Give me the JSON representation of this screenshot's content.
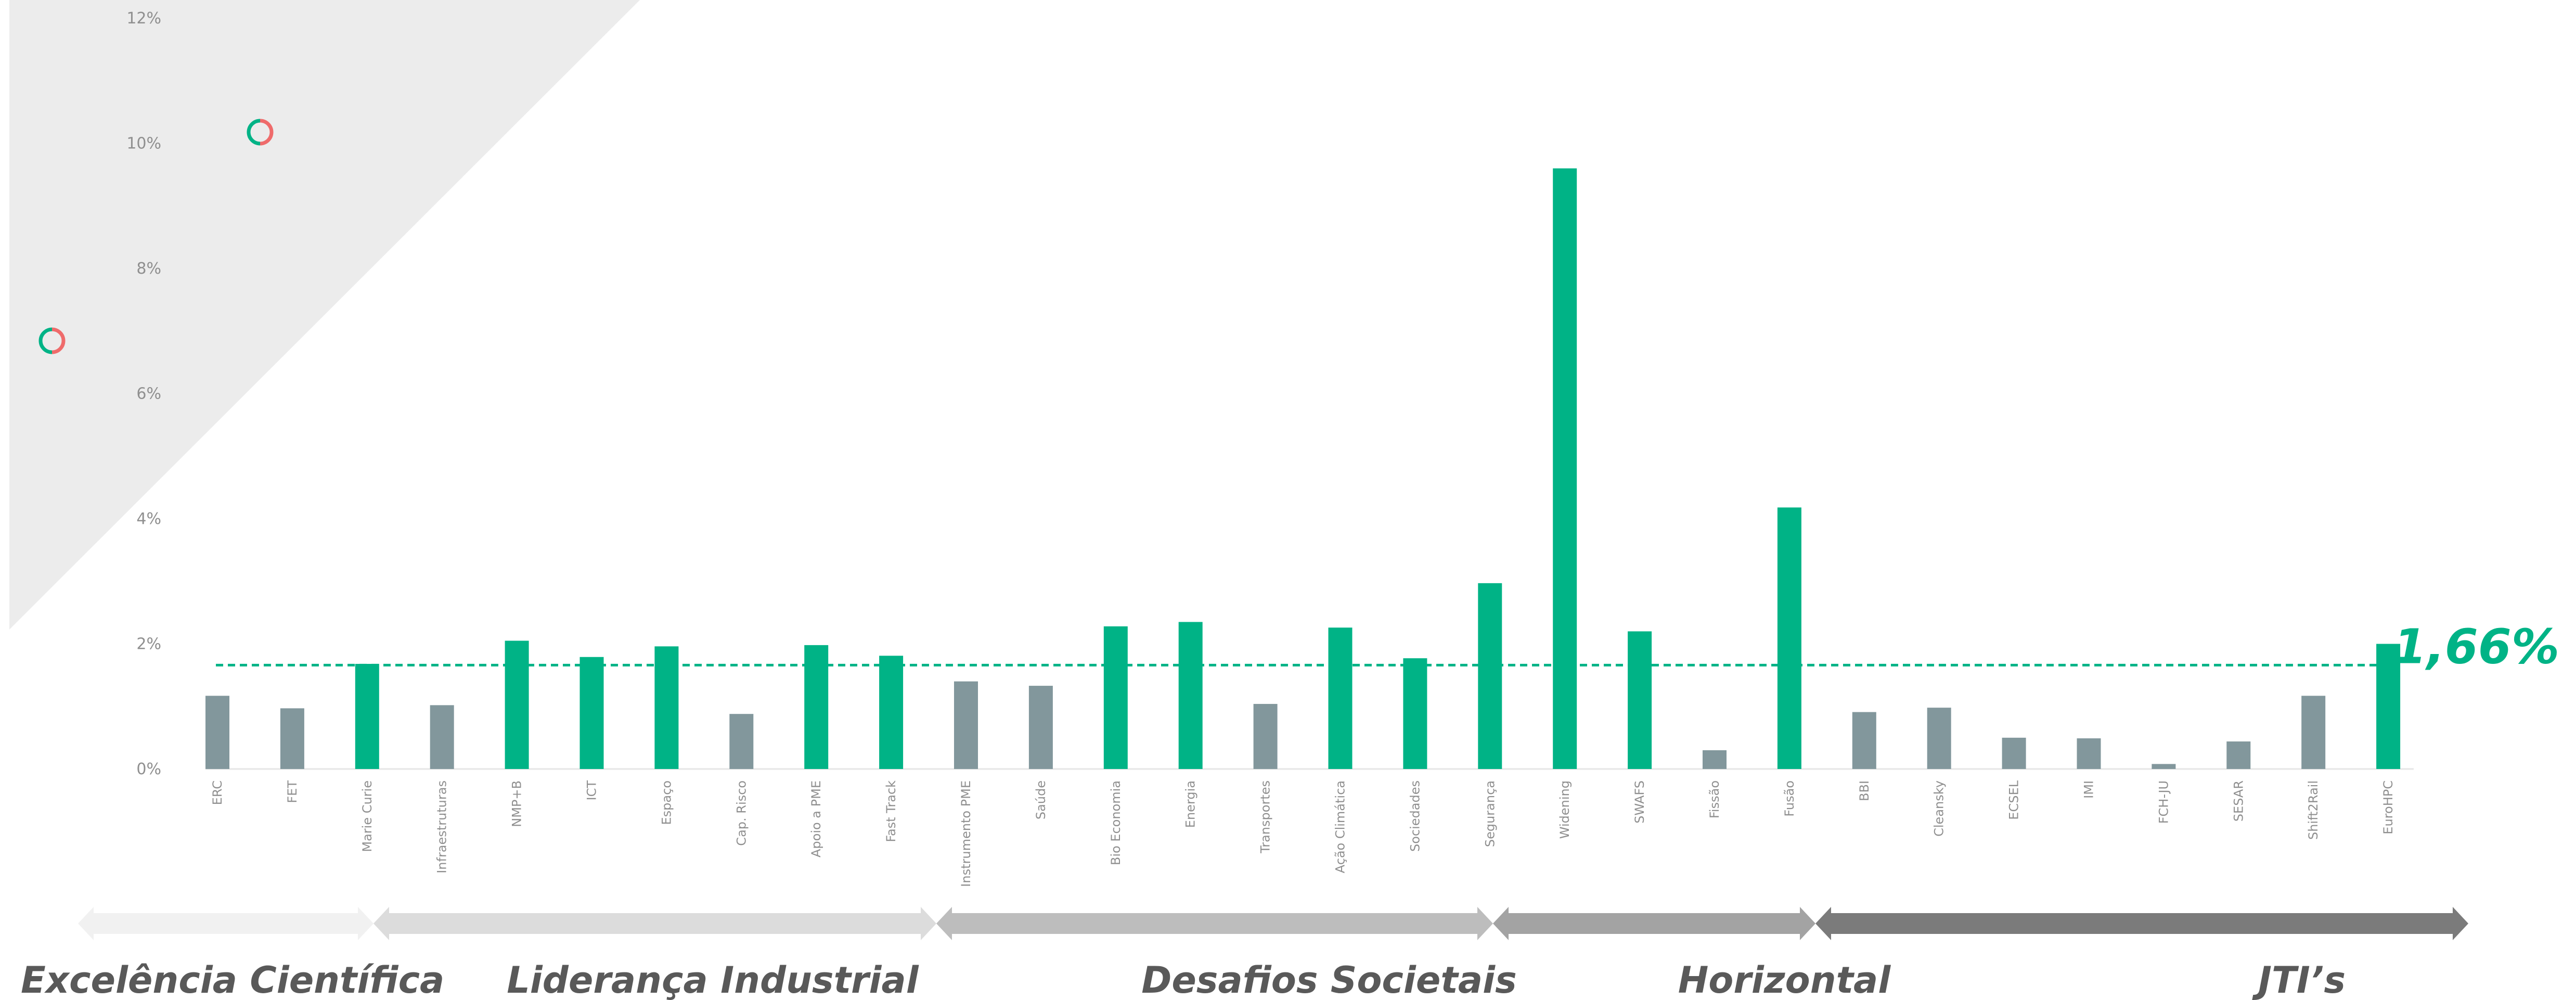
{
  "colors": {
    "above_average": "#00b386",
    "below_average": "#82979c",
    "reference_line": "#00b386",
    "watermark_band": "#ececec",
    "logo_ring_green": "#00b386",
    "logo_ring_red": "#ef6b6b",
    "group_arrows": [
      "#f1f1f1",
      "#dcdcdc",
      "#bdbdbd",
      "#a3a3a3",
      "#7b7b7b"
    ]
  },
  "decorations": {
    "watermark_logos": [
      "logo-ring-icon",
      "logo-ring-icon"
    ]
  },
  "reference": {
    "value": 1.66,
    "label": "1,66%"
  },
  "groups": [
    {
      "label": "Excelência Científica",
      "start": 0,
      "end": 2
    },
    {
      "label": "Liderança Industrial",
      "start": 3,
      "end": 10
    },
    {
      "label": "Desafios Societais",
      "start": 11,
      "end": 17
    },
    {
      "label": "Horizontal",
      "start": 18,
      "end": 21
    },
    {
      "label": "JTI’s",
      "start": 22,
      "end": 29
    }
  ],
  "chart_data": {
    "type": "bar",
    "categories": [
      "ERC",
      "FET",
      "Marie Curie",
      "Infraestruturas",
      "NMP+B",
      "ICT",
      "Espaço",
      "Cap. Risco",
      "Apoio a PME",
      "Fast Track",
      "Instrumento PME",
      "Saúde",
      "Bio Economia",
      "Energia",
      "Transportes",
      "Ação Climática",
      "Sociedades",
      "Segurança",
      "Widening",
      "SWAFS",
      "Fissão",
      "Fusão",
      "BBI",
      "Cleansky",
      "ECSEL",
      "IMI",
      "FCH-JU",
      "SESAR",
      "Shift2Rail",
      "EuroHPC"
    ],
    "values": [
      1.17,
      0.97,
      1.68,
      1.02,
      2.05,
      1.79,
      1.96,
      0.88,
      1.98,
      1.81,
      1.4,
      1.33,
      2.28,
      2.35,
      1.04,
      2.26,
      1.77,
      2.97,
      9.6,
      2.2,
      0.3,
      4.18,
      0.91,
      0.98,
      0.5,
      0.49,
      0.08,
      0.44,
      1.17,
      2.0
    ],
    "y_ticks": [
      "0%",
      "2%",
      "4%",
      "6%",
      "8%",
      "10%",
      "12%"
    ],
    "ylim": [
      0,
      12
    ],
    "reference_line": 1.66,
    "xlabel": "",
    "ylabel": "",
    "legend": "none",
    "grid": false
  }
}
